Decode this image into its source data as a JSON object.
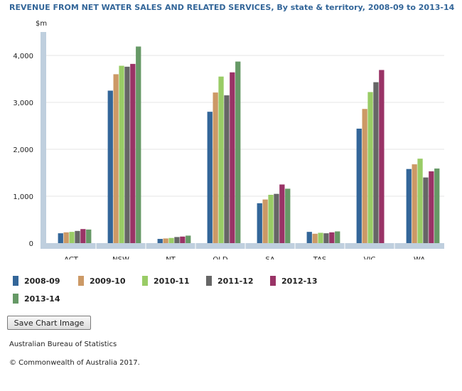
{
  "chart_data": {
    "type": "bar",
    "title": "REVENUE FROM NET WATER SALES AND RELATED SERVICES, By state & territory, 2008-09 to 2013-14",
    "ylabel": "$m",
    "xlabel": "",
    "ylim": [
      0,
      4500
    ],
    "yticks": [
      0,
      1000,
      2000,
      3000,
      4000
    ],
    "ytick_labels": [
      "0",
      "1,000",
      "2,000",
      "3,000",
      "4,000"
    ],
    "grid": true,
    "legend_position": "bottom-left",
    "categories": [
      "ACT",
      "NSW",
      "NT",
      "QLD",
      "SA",
      "TAS",
      "VIC",
      "WA"
    ],
    "series": [
      {
        "name": "2008-09",
        "color": "#336699",
        "values": [
          210,
          3250,
          90,
          2800,
          850,
          240,
          2440,
          1580
        ]
      },
      {
        "name": "2009-10",
        "color": "#CC9966",
        "values": [
          230,
          3600,
          100,
          3210,
          930,
          200,
          2860,
          1680
        ]
      },
      {
        "name": "2010-11",
        "color": "#99CC66",
        "values": [
          240,
          3780,
          110,
          3550,
          1030,
          220,
          3220,
          1800
        ]
      },
      {
        "name": "2011-12",
        "color": "#666666",
        "values": [
          260,
          3760,
          130,
          3150,
          1050,
          210,
          3430,
          1400
        ]
      },
      {
        "name": "2012-13",
        "color": "#993366",
        "values": [
          300,
          3820,
          140,
          3640,
          1250,
          230,
          3690,
          1530
        ]
      },
      {
        "name": "2013-14",
        "color": "#669966",
        "values": [
          290,
          4190,
          160,
          3870,
          1160,
          250,
          null,
          1590
        ]
      }
    ]
  },
  "controls": {
    "save_label": "Save Chart Image"
  },
  "footer": {
    "source": "Australian Bureau of Statistics",
    "copyright": "© Commonwealth of Australia 2017."
  }
}
